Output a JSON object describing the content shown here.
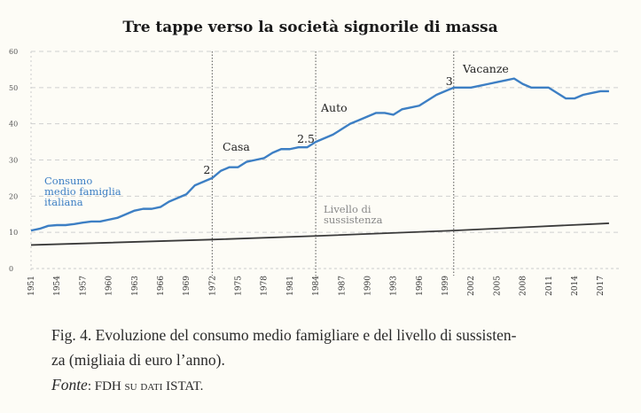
{
  "chart_data": {
    "type": "line",
    "title": "Tre tappe verso la società signorile di massa",
    "xlabel": "",
    "ylabel": "",
    "ylim": [
      0,
      60
    ],
    "yticks": [
      "0",
      "10",
      "20",
      "30",
      "40",
      "50",
      "60"
    ],
    "xticks": [
      "1951",
      "1954",
      "1957",
      "1960",
      "1963",
      "1966",
      "1969",
      "1972",
      "1975",
      "1978",
      "1981",
      "1984",
      "1987",
      "1990",
      "1993",
      "1996",
      "1999",
      "2002",
      "2005",
      "2008",
      "2011",
      "2014",
      "2017"
    ],
    "grid": true,
    "series": [
      {
        "name": "Consumo medio famiglia italiana",
        "color": "#3d7fc4",
        "x": [
          1951,
          1952,
          1953,
          1954,
          1955,
          1956,
          1957,
          1958,
          1959,
          1960,
          1961,
          1962,
          1963,
          1964,
          1965,
          1966,
          1967,
          1968,
          1969,
          1970,
          1971,
          1972,
          1973,
          1974,
          1975,
          1976,
          1977,
          1978,
          1979,
          1980,
          1981,
          1982,
          1983,
          1984,
          1985,
          1986,
          1987,
          1988,
          1989,
          1990,
          1991,
          1992,
          1993,
          1994,
          1995,
          1996,
          1997,
          1998,
          1999,
          2000,
          2001,
          2002,
          2003,
          2004,
          2005,
          2006,
          2007,
          2008,
          2009,
          2010,
          2011,
          2012,
          2013,
          2014,
          2015,
          2016,
          2017,
          2018
        ],
        "values": [
          10.5,
          11,
          11.8,
          12,
          12,
          12.3,
          12.7,
          13,
          13,
          13.5,
          14,
          15,
          16,
          16.5,
          16.5,
          17,
          18.5,
          19.5,
          20.5,
          23,
          24,
          25,
          27,
          28,
          28,
          29.5,
          30,
          30.5,
          32,
          33,
          33,
          33.5,
          33.5,
          35,
          36,
          37,
          38.5,
          40,
          41,
          42,
          43,
          43,
          42.5,
          44,
          44.5,
          45,
          46.5,
          48,
          49,
          50,
          50,
          50,
          50.5,
          51,
          51.5,
          52,
          52.5,
          51,
          50,
          50,
          50,
          48.5,
          47,
          47,
          48,
          48.5,
          49,
          49
        ]
      },
      {
        "name": "Livello di sussistenza",
        "color": "#3a3a3a",
        "x": [
          1951,
          1972,
          1984,
          2000,
          2018
        ],
        "values": [
          6.5,
          8,
          9,
          10.5,
          12.5
        ]
      }
    ],
    "series_label_lines": {
      "consumo": [
        "Consumo",
        "medio famiglia",
        "italiana"
      ],
      "sussistenza": [
        "Livello di",
        "sussistenza"
      ]
    },
    "events": [
      {
        "year": 1972,
        "label": "Casa",
        "ratio": "2"
      },
      {
        "year": 1984,
        "label": "Auto",
        "ratio": "2.5"
      },
      {
        "year": 2000,
        "label": "Vacanze",
        "ratio": "3"
      }
    ]
  },
  "caption": {
    "line1": "Fig. 4. Evoluzione del consumo medio famigliare e del livello di sussisten-",
    "line2": "za (migliaia di euro l’anno).",
    "source_label": "Fonte",
    "source_text": ": FDH su dati ISTAT."
  }
}
